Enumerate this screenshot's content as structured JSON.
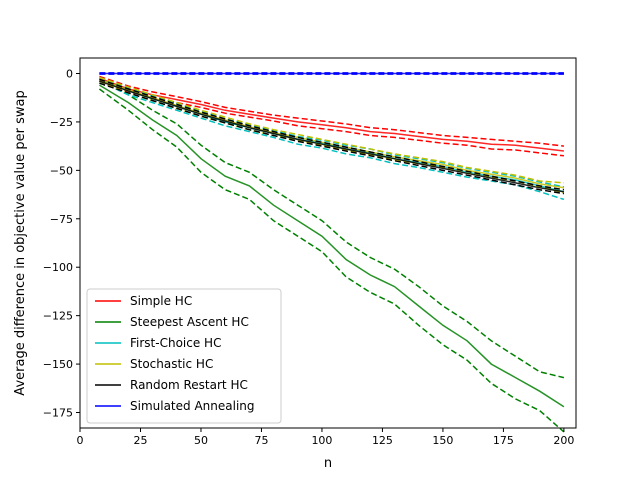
{
  "chart_data": {
    "type": "line",
    "title": "",
    "xlabel": "n",
    "ylabel": "Average difference in objective value per swap",
    "xlim": [
      0,
      205
    ],
    "ylim": [
      -183,
      8
    ],
    "xticks": [
      0,
      25,
      50,
      75,
      100,
      125,
      150,
      175,
      200
    ],
    "yticks": [
      0,
      -25,
      -50,
      -75,
      -100,
      -125,
      -150,
      -175
    ],
    "grid": false,
    "legend_position": "lower-left",
    "dashed_bounds": true,
    "x": [
      8,
      20,
      30,
      40,
      50,
      60,
      70,
      80,
      90,
      100,
      110,
      120,
      130,
      140,
      150,
      160,
      170,
      180,
      190,
      200
    ],
    "series": [
      {
        "name": "Simple HC",
        "color": "#ff0000",
        "values": [
          -2.5,
          -8,
          -11,
          -13.5,
          -16,
          -19,
          -21,
          -23,
          -25,
          -26.5,
          -28,
          -30,
          -31,
          -32.5,
          -34,
          -35,
          -36.5,
          -37,
          -38.5,
          -40
        ],
        "upper": [
          -1.5,
          -6.5,
          -9.5,
          -12,
          -14.5,
          -17.5,
          -19.5,
          -21.5,
          -23,
          -24.5,
          -26,
          -28,
          -29,
          -30.5,
          -32,
          -33,
          -34,
          -35,
          -36,
          -37.5
        ],
        "lower": [
          -3.5,
          -9.5,
          -12.5,
          -15,
          -17.5,
          -20.5,
          -22.5,
          -24.5,
          -27,
          -28.5,
          -30,
          -32,
          -33,
          -34.5,
          -36,
          -37,
          -39,
          -39.5,
          -41,
          -42.5
        ]
      },
      {
        "name": "Steepest Ascent HC",
        "color": "#008000",
        "values": [
          -6,
          -15,
          -24,
          -32,
          -44,
          -53,
          -58,
          -68,
          -76,
          -84,
          -96,
          -104,
          -110,
          -120,
          -130,
          -138,
          -150,
          -157,
          -164,
          -172
        ],
        "upper": [
          -4,
          -11,
          -19,
          -26,
          -37,
          -46,
          -51,
          -60,
          -68,
          -76,
          -87,
          -95,
          -101,
          -110,
          -120,
          -128,
          -138,
          -146,
          -154,
          -157
        ],
        "lower": [
          -8,
          -19,
          -29,
          -38,
          -51,
          -60,
          -65,
          -76,
          -84,
          -92,
          -105,
          -113,
          -119,
          -130,
          -140,
          -148,
          -160,
          -168,
          -174,
          -185
        ]
      },
      {
        "name": "First-Choice HC",
        "color": "#00bfbf",
        "values": [
          -3,
          -9,
          -13,
          -17,
          -21,
          -25,
          -28,
          -31,
          -34,
          -36,
          -39,
          -41,
          -44,
          -46,
          -48,
          -51,
          -53,
          -55,
          -58,
          -61
        ],
        "upper": [
          -2,
          -7.5,
          -11.5,
          -15.5,
          -19.5,
          -23.5,
          -26.5,
          -29.5,
          -32.5,
          -34.5,
          -37,
          -39,
          -42,
          -44,
          -46,
          -49,
          -51,
          -53,
          -56,
          -58.5
        ],
        "lower": [
          -4,
          -11,
          -15,
          -19,
          -23,
          -27,
          -30,
          -33,
          -36.5,
          -38.5,
          -41.5,
          -43.5,
          -46.5,
          -48.5,
          -51,
          -53.5,
          -55.5,
          -57.5,
          -61,
          -65
        ]
      },
      {
        "name": "Stochastic HC",
        "color": "#bfbf00",
        "values": [
          -3,
          -8.5,
          -12.5,
          -16.5,
          -20.5,
          -24,
          -27.5,
          -30.5,
          -33,
          -35.5,
          -38,
          -40.5,
          -43,
          -45,
          -47,
          -50,
          -52,
          -54,
          -57,
          -59
        ],
        "upper": [
          -2,
          -7,
          -11,
          -15,
          -19,
          -22.5,
          -26,
          -29,
          -31.5,
          -34,
          -36.5,
          -39,
          -41.5,
          -43.5,
          -45.5,
          -48.5,
          -50.5,
          -52.5,
          -55.5,
          -56.5
        ],
        "lower": [
          -4,
          -10,
          -14,
          -18,
          -22,
          -25.5,
          -29,
          -32,
          -34.5,
          -37,
          -39.5,
          -42,
          -44.5,
          -46.5,
          -48.5,
          -51.5,
          -53.5,
          -55.5,
          -58.5,
          -61.5
        ]
      },
      {
        "name": "Random Restart HC",
        "color": "#000000",
        "values": [
          -4,
          -9,
          -13,
          -17,
          -21,
          -24.5,
          -28,
          -31,
          -34,
          -36.5,
          -39,
          -41.5,
          -44,
          -46.5,
          -49,
          -51.5,
          -54,
          -56.5,
          -59,
          -61
        ],
        "upper": [
          -3,
          -8,
          -12,
          -16,
          -20,
          -23.5,
          -27,
          -30,
          -33,
          -35.5,
          -38,
          -40.5,
          -43,
          -45.5,
          -48,
          -50.5,
          -53,
          -55.5,
          -58,
          -60
        ],
        "lower": [
          -5,
          -10,
          -14,
          -18,
          -22,
          -25.5,
          -29,
          -32,
          -35,
          -37.5,
          -40,
          -42.5,
          -45,
          -47.5,
          -50,
          -52.5,
          -55,
          -57.5,
          -60,
          -62
        ]
      },
      {
        "name": "Simulated Annealing",
        "color": "#0000ff",
        "values": [
          0,
          0,
          0,
          0,
          0,
          0,
          0,
          0,
          0,
          0,
          0,
          0,
          0,
          0,
          0,
          0,
          0,
          0,
          0,
          0
        ],
        "upper": [
          0.3,
          0.3,
          0.3,
          0.3,
          0.3,
          0.3,
          0.3,
          0.3,
          0.3,
          0.3,
          0.3,
          0.3,
          0.3,
          0.3,
          0.3,
          0.3,
          0.3,
          0.3,
          0.3,
          0.3
        ],
        "lower": [
          -0.3,
          -0.3,
          -0.3,
          -0.3,
          -0.3,
          -0.3,
          -0.3,
          -0.3,
          -0.3,
          -0.3,
          -0.3,
          -0.3,
          -0.3,
          -0.3,
          -0.3,
          -0.3,
          -0.3,
          -0.3,
          -0.3,
          -0.3
        ]
      }
    ]
  }
}
